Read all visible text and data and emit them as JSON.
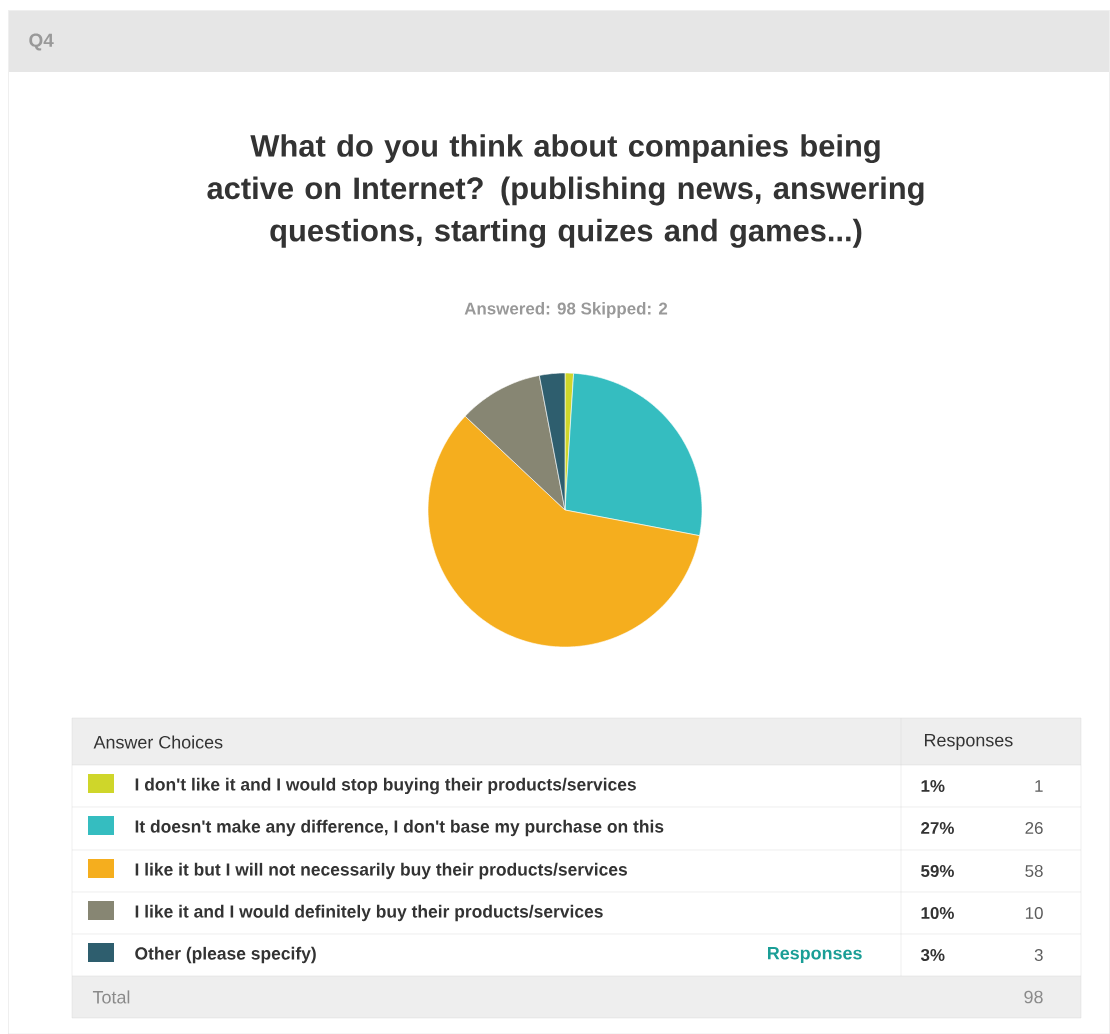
{
  "chart_data": {
    "type": "pie",
    "title": "What do you think about companies being active on Internet? (publishing news, answering questions, starting quizes and games...)",
    "subtitle": "Answered: 98    Skipped: 2",
    "categories": [
      "I don't like it and I would stop buying their products/services",
      "It doesn't make any difference, I don't base my purchase on this",
      "I like it but I will not necessarily buy their products/services",
      "I like it and I would definitely buy their products/services",
      "Other (please specify)"
    ],
    "values": [
      1,
      27,
      59,
      10,
      3
    ],
    "value_labels": [
      "1%",
      "27%",
      "59%",
      "10%",
      "3%"
    ],
    "colors": [
      "#cfd62a",
      "#35bdc0",
      "#f5ae1e",
      "#878673",
      "#2e5e6e"
    ],
    "legend": "bottom",
    "annotations": [
      "Q4",
      "Answer Choices",
      "Responses",
      "Responses",
      "Total",
      "98",
      "1",
      "26",
      "58",
      "10",
      "3"
    ]
  }
}
